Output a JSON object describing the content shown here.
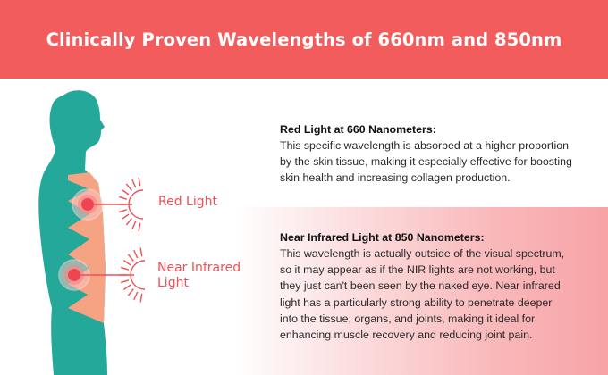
{
  "header": {
    "title": "Clinically Proven Wavelengths of 660nm and 850nm"
  },
  "colors": {
    "header": "#f25c5d",
    "body_figure": "#24a89a",
    "skin_layer": "#f6a383",
    "light_accent": "#ef5054"
  },
  "figure": {
    "red_label": "Red Light",
    "nir_label_line1": "Near Infrared",
    "nir_label_line2": "Light"
  },
  "sections": [
    {
      "title": "Red Light at 660 Nanometers:",
      "lines": [
        "This specific wavelength is absorbed at a higher proportion",
        "by the skin tissue, making it especially effective for boosting",
        "skin health and increasing collagen production."
      ]
    },
    {
      "title": "Near Infrared Light at 850 Nanometers:",
      "lines": [
        "This wavelength is actually outside of the visual spectrum,",
        "so it may appear as if the NIR lights are not working, but",
        "they just can't been seen by the naked eye. Near infrared",
        "light has a particularly strong ability to penetrate deeper",
        "into the tissue, organs, and joints, making it ideal for",
        "enhancing muscle recovery and reducing joint pain."
      ]
    }
  ]
}
